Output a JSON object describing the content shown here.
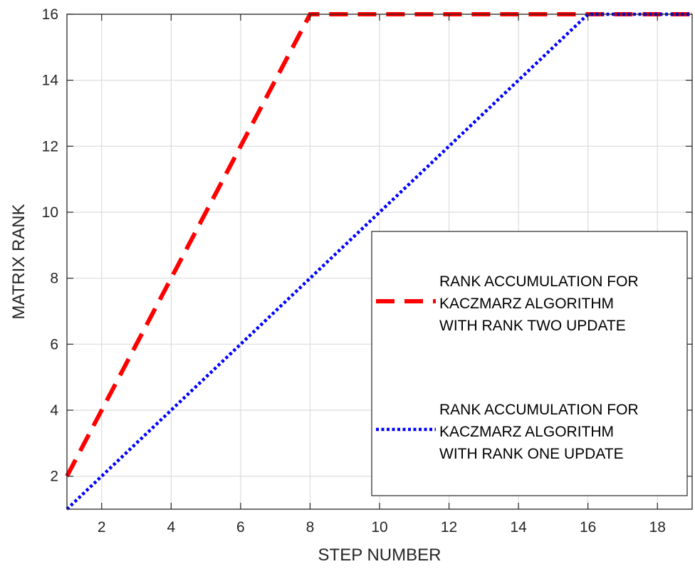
{
  "chart_data": {
    "type": "line",
    "title": "",
    "xlabel": "STEP NUMBER",
    "ylabel": "MATRIX RANK",
    "xlim": [
      1,
      19
    ],
    "ylim": [
      1,
      16
    ],
    "xticks": [
      2,
      4,
      6,
      8,
      10,
      12,
      14,
      16,
      18
    ],
    "yticks": [
      2,
      4,
      6,
      8,
      10,
      12,
      14,
      16
    ],
    "grid": true,
    "legend_position": "lower-right",
    "series": [
      {
        "name": [
          "RANK ACCUMULATION FOR",
          "KACZMARZ ALGORITHM",
          "WITH RANK TWO UPDATE"
        ],
        "color": "#ff0000",
        "line_style": "dashed",
        "x": [
          1,
          2,
          3,
          4,
          5,
          6,
          7,
          8,
          9,
          10,
          11,
          12,
          13,
          14,
          15,
          16,
          17,
          18,
          19
        ],
        "y": [
          2,
          4,
          6,
          8,
          10,
          12,
          14,
          16,
          16,
          16,
          16,
          16,
          16,
          16,
          16,
          16,
          16,
          16,
          16
        ]
      },
      {
        "name": [
          "RANK ACCUMULATION FOR",
          "KACZMARZ ALGORITHM",
          "WITH RANK ONE UPDATE"
        ],
        "color": "#0000ff",
        "line_style": "dotted",
        "x": [
          1,
          2,
          3,
          4,
          5,
          6,
          7,
          8,
          9,
          10,
          11,
          12,
          13,
          14,
          15,
          16,
          17,
          18,
          19
        ],
        "y": [
          1,
          2,
          3,
          4,
          5,
          6,
          7,
          8,
          9,
          10,
          11,
          12,
          13,
          14,
          15,
          16,
          16,
          16,
          16
        ]
      }
    ]
  }
}
